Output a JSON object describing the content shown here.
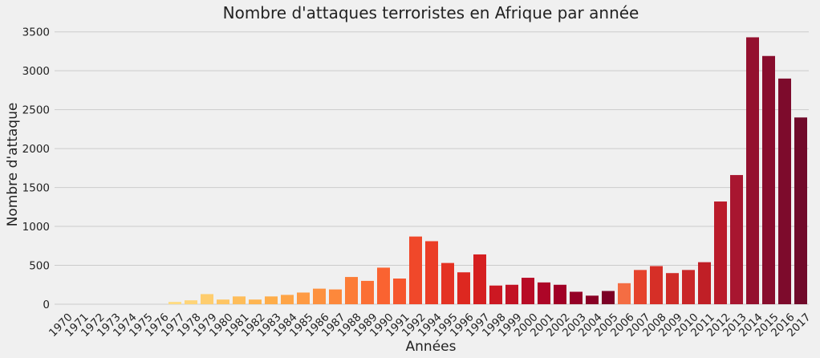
{
  "chart_data": {
    "type": "bar",
    "title": "Nombre d'attaques terroristes en Afrique par année",
    "xlabel": "Années",
    "ylabel": "Nombre d'attaque",
    "ylim": [
      0,
      3600
    ],
    "yticks": [
      0,
      500,
      1000,
      1500,
      2000,
      2500,
      3000,
      3500
    ],
    "grid": true,
    "categories": [
      "1970",
      "1971",
      "1972",
      "1973",
      "1974",
      "1975",
      "1976",
      "1977",
      "1978",
      "1979",
      "1980",
      "1981",
      "1982",
      "1983",
      "1984",
      "1985",
      "1986",
      "1987",
      "1988",
      "1989",
      "1990",
      "1991",
      "1992",
      "1994",
      "1995",
      "1996",
      "1997",
      "1998",
      "1999",
      "2000",
      "2001",
      "2002",
      "2003",
      "2004",
      "2005",
      "2006",
      "2007",
      "2008",
      "2009",
      "2010",
      "2011",
      "2012",
      "2013",
      "2014",
      "2015",
      "2016",
      "2017"
    ],
    "values": [
      0,
      0,
      0,
      0,
      0,
      0,
      0,
      30,
      50,
      130,
      60,
      100,
      60,
      100,
      120,
      150,
      200,
      190,
      350,
      300,
      470,
      330,
      870,
      810,
      530,
      410,
      640,
      240,
      250,
      340,
      280,
      250,
      160,
      110,
      170,
      270,
      440,
      490,
      400,
      440,
      540,
      1320,
      1660,
      3430,
      3190,
      2900,
      2400
    ],
    "colors": [
      "#fffecb",
      "#fffac0",
      "#fff5b6",
      "#fff0ab",
      "#ffeca1",
      "#fee897",
      "#fee28d",
      "#fedb83",
      "#fed478",
      "#fecd6e",
      "#fec563",
      "#febd5a",
      "#feb552",
      "#fead4a",
      "#fea446",
      "#fe9a43",
      "#fd913f",
      "#fd883b",
      "#fc7c37",
      "#fb6f34",
      "#fa6331",
      "#f6562d",
      "#f0482a",
      "#eb3d26",
      "#e43223",
      "#dd2820",
      "#d51f20",
      "#cc1822",
      "#c21224",
      "#b80c26",
      "#ad0527",
      "#a10026",
      "#950026",
      "#890025",
      "#7c0025",
      "#f46d43",
      "#e5432d",
      "#d62f27",
      "#cf2b27",
      "#c92527",
      "#c01f26",
      "#ba1b2a",
      "#a81630",
      "#94102e",
      "#880d2d",
      "#7d0b2c",
      "#700a2a"
    ]
  }
}
